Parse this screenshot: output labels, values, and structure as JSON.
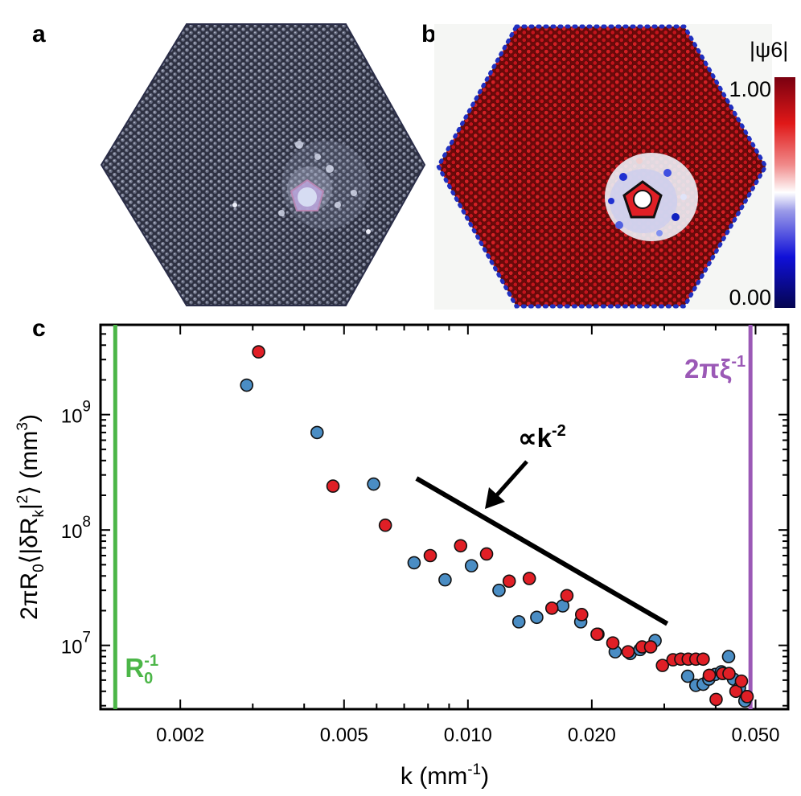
{
  "panels": {
    "a": {
      "label": "a"
    },
    "b": {
      "label": "b",
      "colorbar": {
        "title": "|ψ6|",
        "max_label": "1.00",
        "min_label": "0.00"
      }
    },
    "c": {
      "label": "c"
    }
  },
  "colors": {
    "blue_points": "#4a8dc4",
    "red_points": "#e01f26",
    "R0_line": "#4cb648",
    "xi_line": "#9b59b6",
    "cmap_high": "#7a0010",
    "cmap_mid": "#ffffff",
    "cmap_low": "#050550"
  },
  "chart_data": {
    "type": "scatter",
    "title": "",
    "xlabel": "k (mm⁻¹)",
    "ylabel": "2πR₀⟨|δR_k|²⟩ (mm³)",
    "xscale": "log",
    "yscale": "log",
    "xlim": [
      0.00128,
      0.06
    ],
    "ylim": [
      2800000.0,
      6000000000.0
    ],
    "x_ticks": [
      0.002,
      0.005,
      0.01,
      0.02,
      0.05
    ],
    "x_tick_labels": [
      "0.002",
      "0.005",
      "0.010",
      "0.020",
      "0.050"
    ],
    "y_ticks": [
      10000000.0,
      100000000.0,
      1000000000.0
    ],
    "y_tick_labels": [
      {
        "base": "10",
        "exp": "7"
      },
      {
        "base": "10",
        "exp": "8"
      },
      {
        "base": "10",
        "exp": "9"
      }
    ],
    "series": [
      {
        "name": "blue",
        "color": "#4a8dc4",
        "x": [
          0.0029,
          0.0043,
          0.0059,
          0.0074,
          0.0088,
          0.0102,
          0.0119,
          0.0133,
          0.0147,
          0.017,
          0.0188,
          0.0207,
          0.0228,
          0.0248,
          0.0262,
          0.0285,
          0.0342,
          0.0358,
          0.0373,
          0.0385,
          0.0399,
          0.0413,
          0.043,
          0.0442,
          0.0457,
          0.0471
        ],
        "y": [
          1800000000.0,
          700000000.0,
          250000000.0,
          52000000.0,
          37000000.0,
          49000000.0,
          30000000.0,
          16000000.0,
          17500000.0,
          22000000.0,
          16000000.0,
          12500000.0,
          8800000.0,
          8500000.0,
          9200000.0,
          11000000.0,
          5400000.0,
          4500000.0,
          4600000.0,
          5100000.0,
          5600000.0,
          5900000.0,
          8000000.0,
          5100000.0,
          4300000.0,
          3300000.0
        ]
      },
      {
        "name": "red",
        "color": "#e01f26",
        "x": [
          0.0031,
          0.0047,
          0.0063,
          0.0081,
          0.0096,
          0.0111,
          0.0126,
          0.0141,
          0.016,
          0.0174,
          0.0189,
          0.0206,
          0.0225,
          0.0245,
          0.0265,
          0.0278,
          0.0297,
          0.0315,
          0.0329,
          0.0343,
          0.0358,
          0.0373,
          0.0386,
          0.0401,
          0.0416,
          0.0431,
          0.0448,
          0.0462,
          0.0477
        ],
        "y": [
          3500000000.0,
          240000000.0,
          110000000.0,
          60000000.0,
          73000000.0,
          62000000.0,
          36000000.0,
          38000000.0,
          21000000.0,
          27000000.0,
          18500000.0,
          12500000.0,
          10500000.0,
          8800000.0,
          9700000.0,
          9700000.0,
          6700000.0,
          7500000.0,
          7600000.0,
          7600000.0,
          7600000.0,
          7600000.0,
          5500000.0,
          3400000.0,
          5700000.0,
          5700000.0,
          4000000.0,
          4900000.0,
          3600000.0
        ]
      }
    ],
    "vertical_lines": [
      {
        "name": "R0_inverse",
        "x": 0.00139,
        "color": "#4cb648",
        "label_base": "R",
        "label_sub": "0",
        "label_sup": "-1"
      },
      {
        "name": "xi_inverse",
        "x": 0.0486,
        "color": "#9b59b6",
        "label_base": "2πξ",
        "label_sup": "-1"
      }
    ],
    "guide_line": {
      "x": [
        0.0075,
        0.0305
      ],
      "y": [
        280000000.0,
        15400000.0
      ],
      "color": "#000000"
    },
    "annotation": {
      "text": "∝k",
      "sup": "-2"
    }
  }
}
